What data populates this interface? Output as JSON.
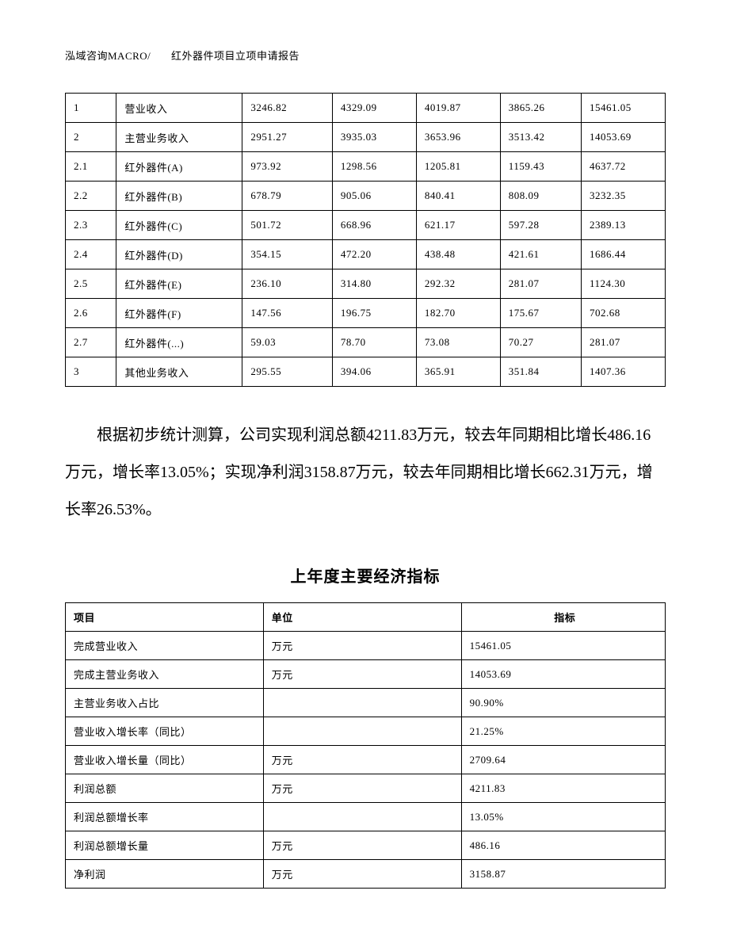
{
  "header": {
    "left": "泓域咨询MACRO/",
    "right": "红外器件项目立项申请报告"
  },
  "table1": {
    "columns": [
      "",
      "",
      "",
      "",
      "",
      "",
      ""
    ],
    "rows": [
      [
        "1",
        "营业收入",
        "3246.82",
        "4329.09",
        "4019.87",
        "3865.26",
        "15461.05"
      ],
      [
        "2",
        "主营业务收入",
        "2951.27",
        "3935.03",
        "3653.96",
        "3513.42",
        "14053.69"
      ],
      [
        "2.1",
        "红外器件(A)",
        "973.92",
        "1298.56",
        "1205.81",
        "1159.43",
        "4637.72"
      ],
      [
        "2.2",
        "红外器件(B)",
        "678.79",
        "905.06",
        "840.41",
        "808.09",
        "3232.35"
      ],
      [
        "2.3",
        "红外器件(C)",
        "501.72",
        "668.96",
        "621.17",
        "597.28",
        "2389.13"
      ],
      [
        "2.4",
        "红外器件(D)",
        "354.15",
        "472.20",
        "438.48",
        "421.61",
        "1686.44"
      ],
      [
        "2.5",
        "红外器件(E)",
        "236.10",
        "314.80",
        "292.32",
        "281.07",
        "1124.30"
      ],
      [
        "2.6",
        "红外器件(F)",
        "147.56",
        "196.75",
        "182.70",
        "175.67",
        "702.68"
      ],
      [
        "2.7",
        "红外器件(...)",
        "59.03",
        "78.70",
        "73.08",
        "70.27",
        "281.07"
      ],
      [
        "3",
        "其他业务收入",
        "295.55",
        "394.06",
        "365.91",
        "351.84",
        "1407.36"
      ]
    ]
  },
  "paragraph": "根据初步统计测算，公司实现利润总额4211.83万元，较去年同期相比增长486.16万元，增长率13.05%；实现净利润3158.87万元，较去年同期相比增长662.31万元，增长率26.53%。",
  "section_title": "上年度主要经济指标",
  "table2": {
    "headers": [
      "项目",
      "单位",
      "指标"
    ],
    "rows": [
      [
        "完成营业收入",
        "万元",
        "15461.05"
      ],
      [
        "完成主营业务收入",
        "万元",
        "14053.69"
      ],
      [
        "主营业务收入占比",
        "",
        "90.90%"
      ],
      [
        "营业收入增长率（同比）",
        "",
        "21.25%"
      ],
      [
        "营业收入增长量（同比）",
        "万元",
        "2709.64"
      ],
      [
        "利润总额",
        "万元",
        "4211.83"
      ],
      [
        "利润总额增长率",
        "",
        "13.05%"
      ],
      [
        "利润总额增长量",
        "万元",
        "486.16"
      ],
      [
        "净利润",
        "万元",
        "3158.87"
      ]
    ]
  }
}
